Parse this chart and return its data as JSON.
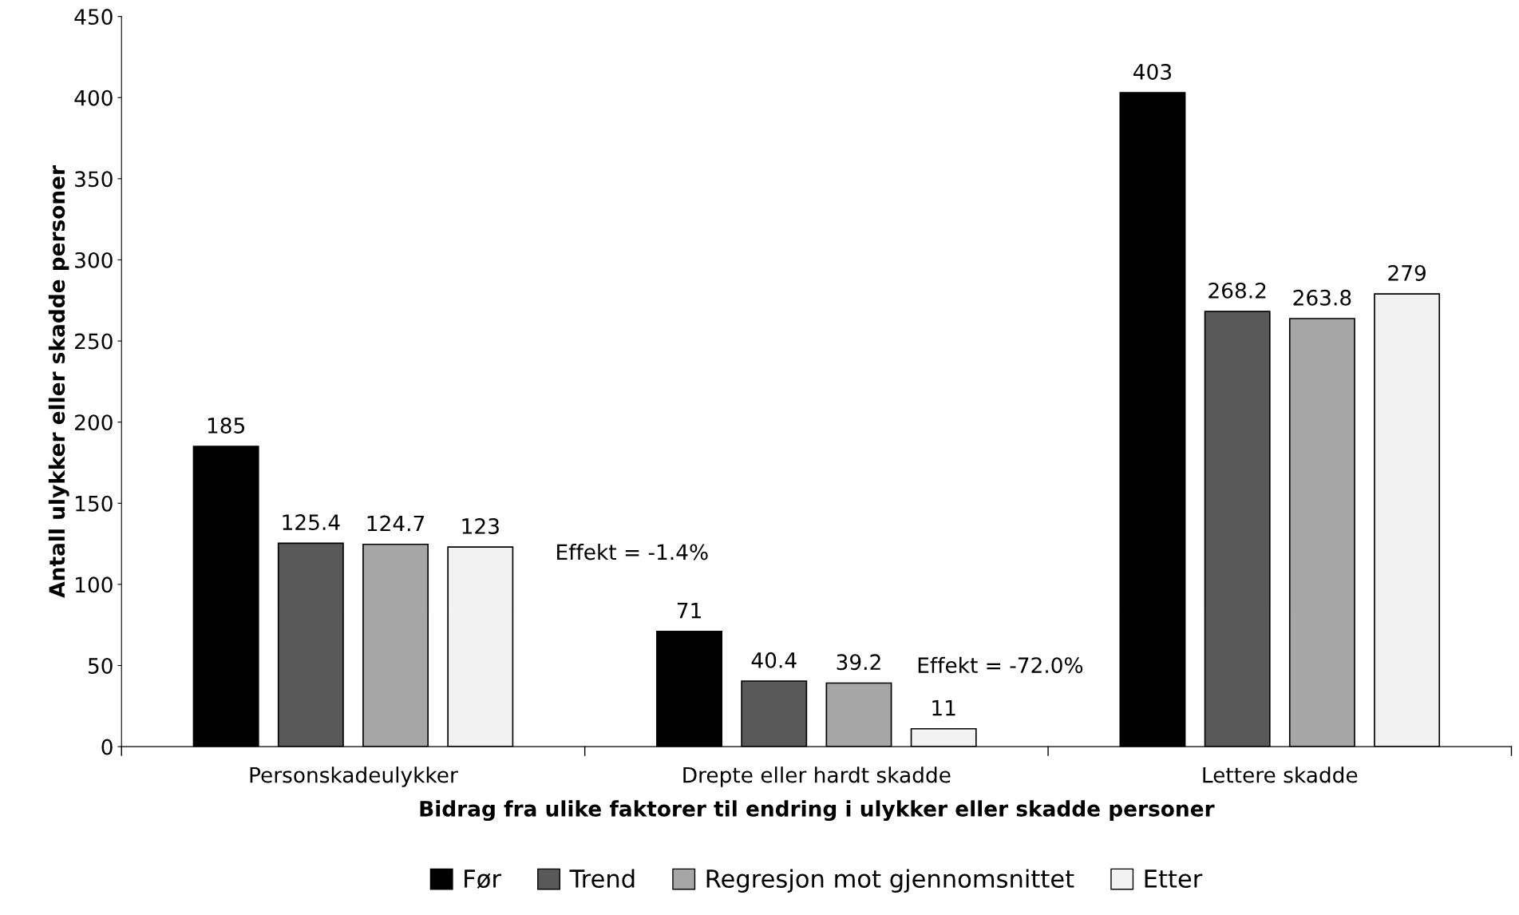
{
  "chart_data": {
    "type": "bar",
    "xlabel": "Bidrag fra ulike faktorer til endring i ulykker eller skadde personer",
    "ylabel": "Antall ulykker eller skadde personer",
    "categories": [
      "Personskadeulykker",
      "Drepte eller hardt skadde",
      "Lettere skadde"
    ],
    "series": [
      {
        "name": "Før",
        "color": "#000000",
        "values": [
          185,
          71,
          403
        ]
      },
      {
        "name": "Trend",
        "color": "#595959",
        "values": [
          125.4,
          40.4,
          268.2
        ]
      },
      {
        "name": "Regresjon mot gjennomsnittet",
        "color": "#a6a6a6",
        "values": [
          124.7,
          39.2,
          263.8
        ]
      },
      {
        "name": "Etter",
        "color": "#f2f2f2",
        "values": [
          123,
          11,
          279
        ]
      }
    ],
    "annotations": [
      "Effekt = -1.4%",
      "Effekt = -72.0%"
    ],
    "ylim": [
      0,
      450
    ],
    "yticks": [
      0,
      50,
      100,
      150,
      200,
      250,
      300,
      350,
      400,
      450
    ],
    "data_labels": true,
    "grid": false,
    "legend": "bottom"
  }
}
